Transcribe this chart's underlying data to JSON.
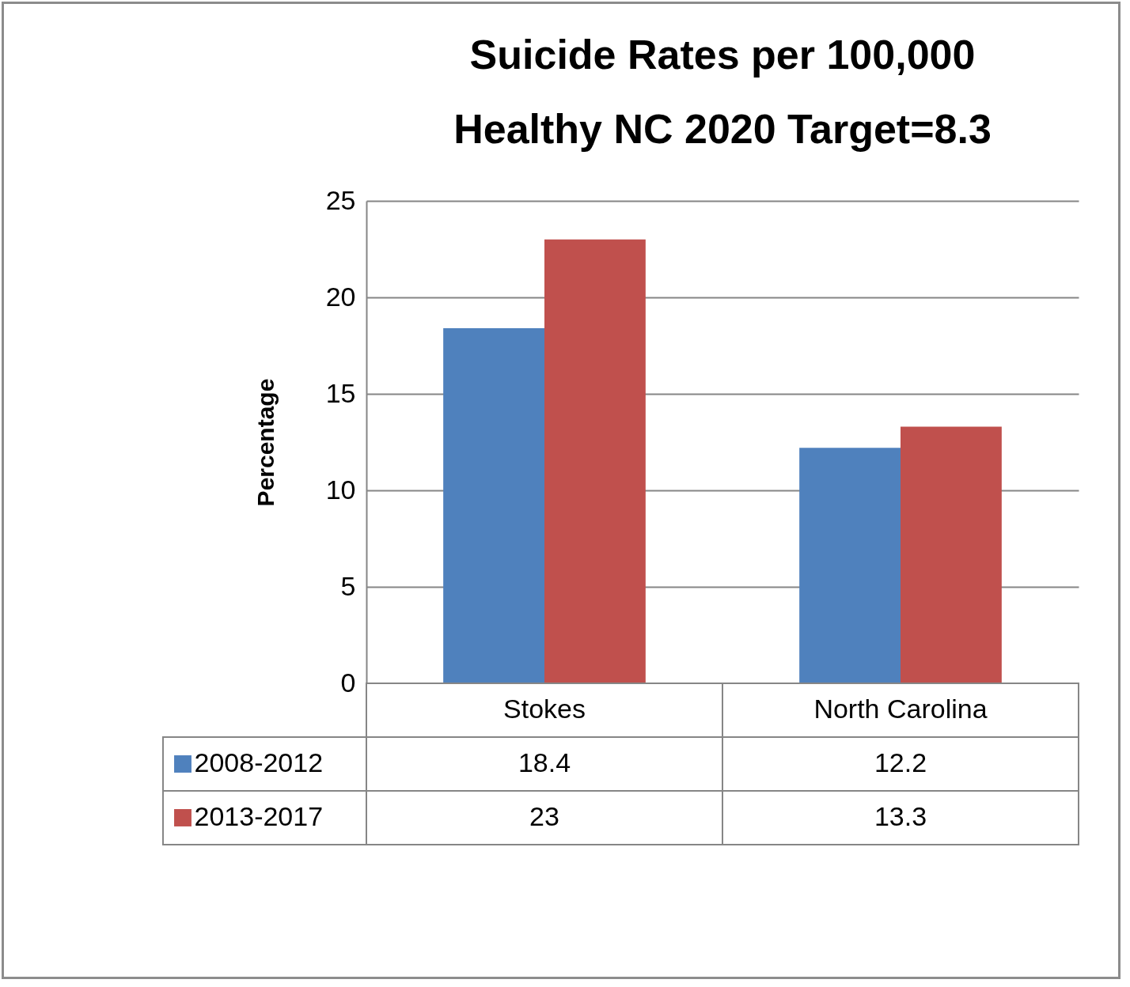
{
  "chart_data": {
    "type": "bar",
    "title": "Suicide Rates per 100,000\nHealthy NC 2020 Target=8.3",
    "ylabel": "Percentage",
    "categories": [
      "Stokes",
      "North Carolina"
    ],
    "series": [
      {
        "name": "2008-2012",
        "color": "#4f81bd",
        "values": [
          18.4,
          12.2
        ]
      },
      {
        "name": "2013-2017",
        "color": "#c0504d",
        "values": [
          23,
          13.3
        ]
      }
    ],
    "ylim": [
      0,
      25
    ],
    "yticks": [
      0,
      5,
      10,
      15,
      20,
      25
    ],
    "grid": "y",
    "legend": "bottom",
    "data_labels": true
  }
}
